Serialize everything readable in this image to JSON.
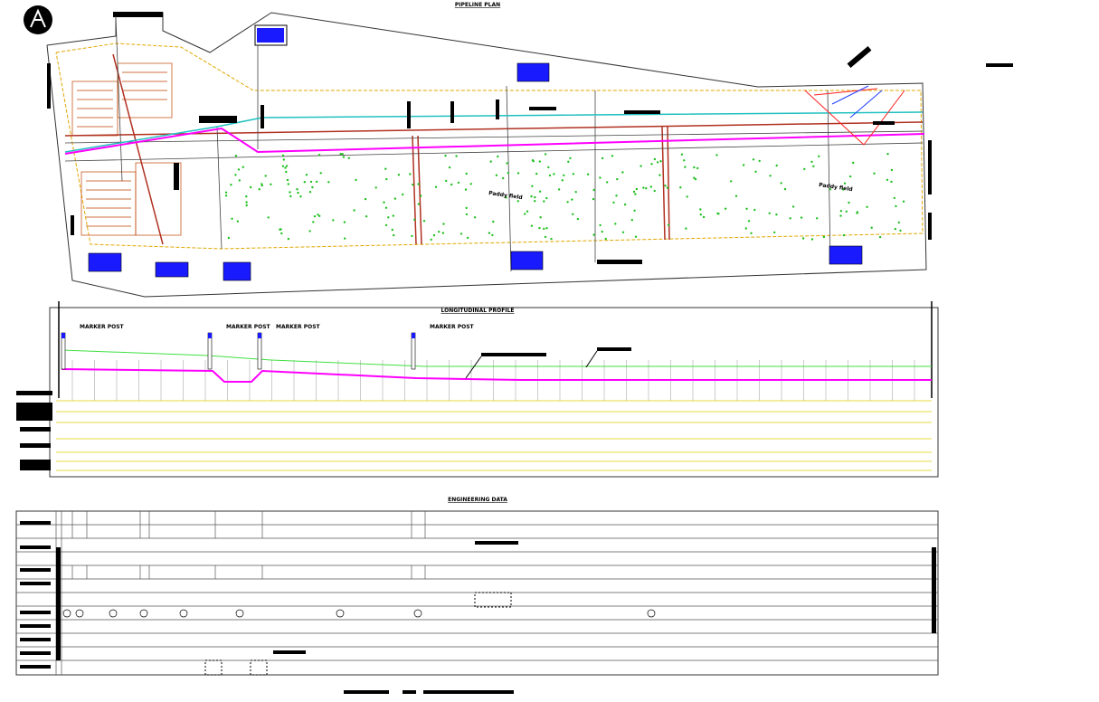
{
  "header": {
    "plan_title": "PIPELINE PLAN",
    "profile_title": "LONGITUDINAL PROFILE",
    "data_title": "ENGINEERING DATA"
  },
  "plan": {
    "field_labels": [
      "Paddy field",
      "Paddy field"
    ]
  },
  "profile": {
    "markers": [
      "MARKER POST",
      "MARKER POST",
      "MARKER POST",
      "MARKER POST"
    ]
  }
}
